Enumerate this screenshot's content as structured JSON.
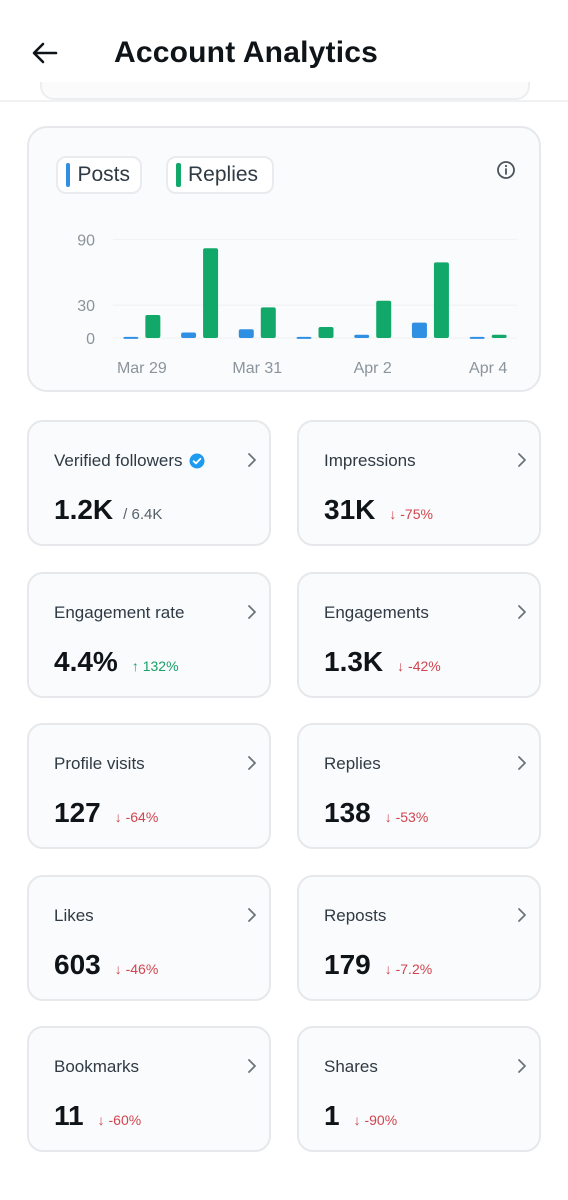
{
  "header": {
    "title": "Account Analytics"
  },
  "chart": {
    "legend": [
      {
        "label": "Posts",
        "color": "#2f8fe3"
      },
      {
        "label": "Replies",
        "color": "#11a86a"
      }
    ]
  },
  "chart_data": {
    "type": "bar",
    "categories": [
      "Mar 29",
      "Mar 30",
      "Mar 31",
      "Apr 1",
      "Apr 2",
      "Apr 3",
      "Apr 4"
    ],
    "x_tick_labels": [
      "Mar 29",
      "Mar 31",
      "Apr 2",
      "Apr 4"
    ],
    "y_ticks": [
      0,
      30,
      90
    ],
    "ylim": [
      0,
      105
    ],
    "series": [
      {
        "name": "Posts",
        "color": "#2f8fe3",
        "values": [
          1,
          5,
          8,
          1,
          3,
          14,
          1
        ]
      },
      {
        "name": "Replies",
        "color": "#11a86a",
        "values": [
          21,
          82,
          28,
          10,
          34,
          69,
          3
        ]
      }
    ],
    "title": "",
    "xlabel": "",
    "ylabel": ""
  },
  "stats": [
    {
      "label": "Verified followers",
      "value": "1.2K",
      "sub": "/ 6.4K",
      "delta": "",
      "verified": true
    },
    {
      "label": "Impressions",
      "value": "31K",
      "delta": "↓ -75%",
      "direction": "down"
    },
    {
      "label": "Engagement rate",
      "value": "4.4%",
      "delta": "↑ 132%",
      "direction": "up"
    },
    {
      "label": "Engagements",
      "value": "1.3K",
      "delta": "↓ -42%",
      "direction": "down"
    },
    {
      "label": "Profile visits",
      "value": "127",
      "delta": "↓ -64%",
      "direction": "down"
    },
    {
      "label": "Replies",
      "value": "138",
      "delta": "↓ -53%",
      "direction": "down"
    },
    {
      "label": "Likes",
      "value": "603",
      "delta": "↓ -46%",
      "direction": "down"
    },
    {
      "label": "Reposts",
      "value": "179",
      "delta": "↓ -7.2%",
      "direction": "down"
    },
    {
      "label": "Bookmarks",
      "value": "11",
      "delta": "↓ -60%",
      "direction": "down"
    },
    {
      "label": "Shares",
      "value": "1",
      "delta": "↓ -90%",
      "direction": "down"
    }
  ]
}
